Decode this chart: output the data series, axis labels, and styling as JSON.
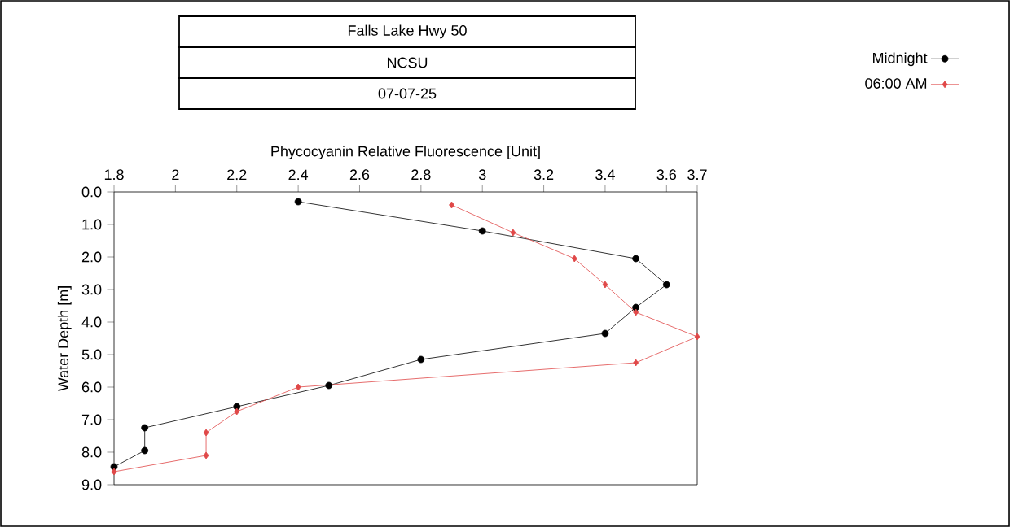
{
  "chart_data": {
    "type": "line",
    "title": "Falls Lake Hwy 50",
    "subtitle": "NCSU",
    "annotations": [
      "07-07-25"
    ],
    "xlabel": "Phycocyanin Relative Fluorescence [Unit]",
    "ylabel": "Water Depth [m]",
    "xlim": [
      1.8,
      3.7
    ],
    "xticks": [
      1.8,
      2,
      2.2,
      2.4,
      2.6,
      2.8,
      3,
      3.2,
      3.4,
      3.6,
      3.7
    ],
    "ylim": [
      9,
      0
    ],
    "yticks": [
      {
        "value": 0,
        "label": "0.0"
      },
      {
        "value": 1,
        "label": "1.0"
      },
      {
        "value": 2,
        "label": "2.0"
      },
      {
        "value": 3,
        "label": "3.0"
      },
      {
        "value": 4,
        "label": "4.0"
      },
      {
        "value": 5,
        "label": "5.0"
      },
      {
        "value": 6,
        "label": "6.0"
      },
      {
        "value": 7,
        "label": "7.0"
      },
      {
        "value": 8,
        "label": "8.0"
      },
      {
        "value": 9,
        "label": "9.0"
      }
    ],
    "grid": false,
    "legend": "top right",
    "series": [
      {
        "name": "Midnight",
        "color": "#000000",
        "marker": "circle",
        "x": [
          2.4,
          3.0,
          3.5,
          3.6,
          3.5,
          3.4,
          2.8,
          2.5,
          2.2,
          1.9,
          1.9,
          1.8
        ],
        "values": [
          0.3,
          1.2,
          2.05,
          2.85,
          3.55,
          4.35,
          5.15,
          5.95,
          6.6,
          7.25,
          7.95,
          8.45
        ]
      },
      {
        "name": "06:00 AM",
        "color": "#e04848",
        "marker": "diamond",
        "x": [
          2.9,
          3.1,
          3.3,
          3.4,
          3.5,
          3.7,
          3.5,
          2.4,
          2.2,
          2.1,
          2.1,
          1.8
        ],
        "values": [
          0.4,
          1.25,
          2.05,
          2.85,
          3.7,
          4.45,
          5.25,
          6.0,
          6.75,
          7.4,
          8.1,
          8.6
        ]
      }
    ]
  }
}
